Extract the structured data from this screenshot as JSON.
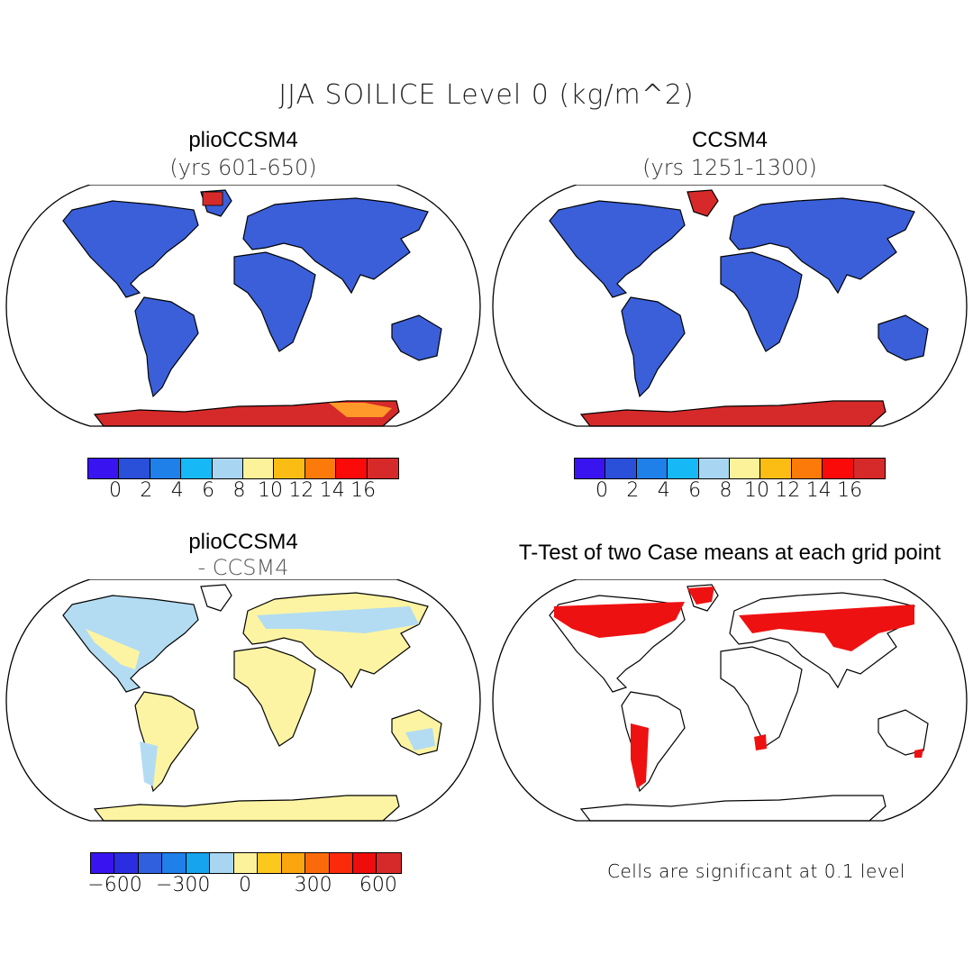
{
  "title": "JJA SOILICE Level 0 (kg/m^2)",
  "colors": {
    "ocean": "#ffffff",
    "coast": "#000000",
    "land_blue": "#3a5fd9",
    "ice_red": "#d62a2a",
    "diff_yellow": "#fdf4a3",
    "diff_lightblue": "#b3dcf2",
    "signif_red": "#ee1111"
  },
  "panels": {
    "top_left": {
      "title": "plioCCSM4",
      "subtitle": "(yrs 601-650)"
    },
    "top_right": {
      "title": "CCSM4",
      "subtitle": "(yrs 1251-1300)"
    },
    "bottom_left": {
      "title": "plioCCSM4",
      "subtitle": "- CCSM4"
    },
    "bottom_right": {
      "title": "T-Test of two Case means at each grid point",
      "note": "Cells are significant at 0.1 level"
    }
  },
  "colorbar_top": {
    "colors": [
      "#3a14f0",
      "#2a4fd8",
      "#1f80ea",
      "#16b8f5",
      "#a8d6f2",
      "#fbf29a",
      "#fbbc14",
      "#fb7a0a",
      "#fb0a0a",
      "#d62a2a"
    ],
    "ticks": [
      "0",
      "2",
      "4",
      "6",
      "8",
      "10",
      "12",
      "14",
      "16"
    ]
  },
  "colorbar_diff": {
    "colors": [
      "#3a14f0",
      "#2a2ee0",
      "#3060dd",
      "#1f80ea",
      "#16a4ef",
      "#a8d6f2",
      "#fbf29a",
      "#fbc81e",
      "#fba60e",
      "#fb6a0a",
      "#fb2a0a",
      "#ee0c0c",
      "#d62a2a"
    ],
    "ticks": [
      "-600",
      "-300",
      "0",
      "300",
      "600"
    ]
  }
}
